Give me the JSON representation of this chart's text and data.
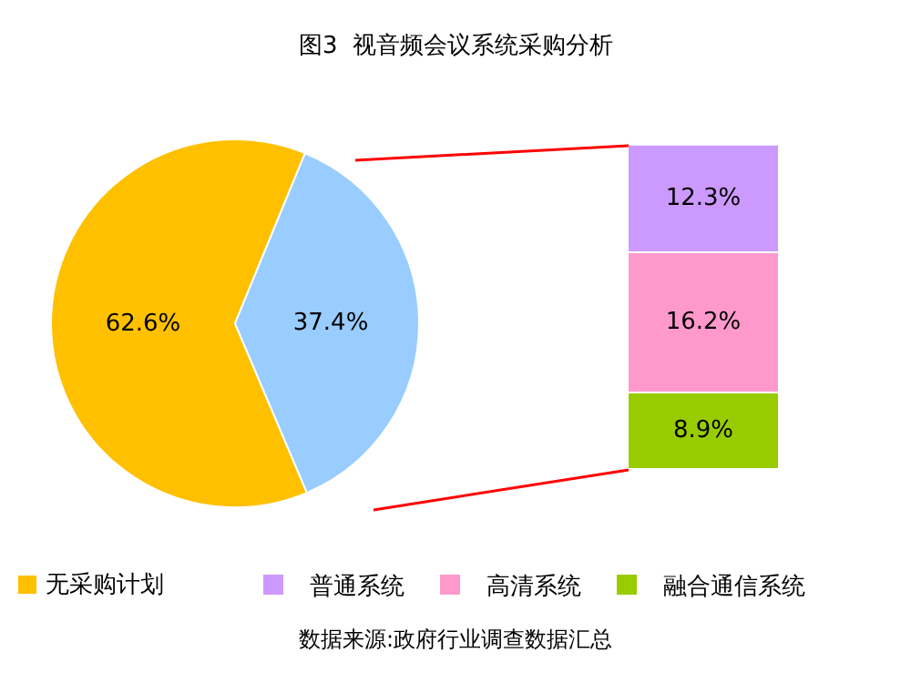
{
  "chart_data": [
    {
      "type": "pie",
      "title": "图3  视音频会议系统采购分析",
      "categories": [
        "无采购计划",
        null
      ],
      "values": [
        62.6,
        37.4
      ],
      "colors": [
        "#ffc000",
        "#99ccff"
      ],
      "value_labels": [
        "62.6%",
        "37.4%"
      ],
      "legend": "bottom",
      "annotations": [
        "数据来源:政府行业调查数据汇总"
      ]
    },
    {
      "type": "bar",
      "stacked": true,
      "categories": [
        null
      ],
      "ylim": [
        0,
        37.5
      ],
      "tick_labels": false,
      "legend": "bottom",
      "series": [
        {
          "name": "融合通信系统",
          "color": "#99cc00",
          "values": [
            8.9
          ],
          "value_labels": [
            "8.9%"
          ]
        },
        {
          "name": "高清系统",
          "color": "#ff99cc",
          "values": [
            16.2
          ],
          "value_labels": [
            "16.2%"
          ]
        },
        {
          "name": "普通系统",
          "color": "#cc99ff",
          "values": [
            12.3
          ],
          "value_labels": [
            "12.3%"
          ]
        }
      ]
    }
  ]
}
